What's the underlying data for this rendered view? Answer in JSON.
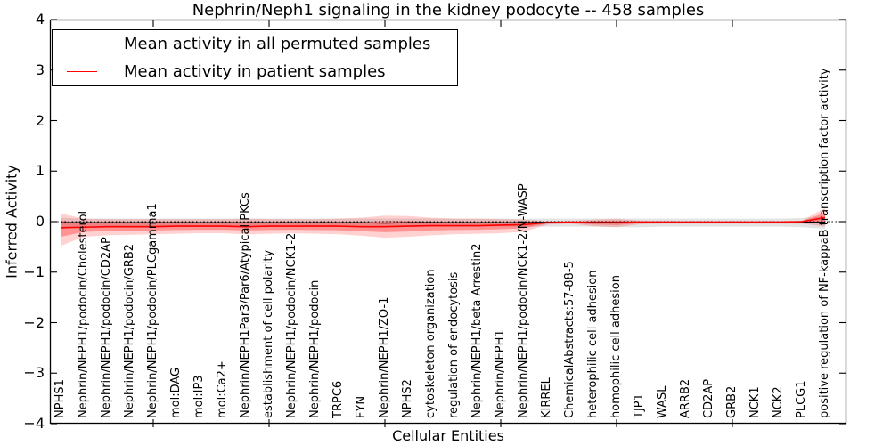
{
  "chart_data": {
    "type": "line",
    "title": "Nephrin/Neph1 signaling in the kidney podocyte -- 458 samples",
    "xlabel": "Cellular Entities",
    "ylabel": "Inferred Activity",
    "ylim": [
      -4,
      4
    ],
    "grid": false,
    "legend_position": "upper left",
    "legend": [
      "Mean activity in all permuted samples",
      "Mean activity in patient samples"
    ],
    "ytick_values": [
      4,
      3,
      2,
      1,
      0,
      -1,
      -2,
      -3,
      -4
    ],
    "ytick_labels": [
      "4",
      "3",
      "2",
      "1",
      "0",
      "−1",
      "−2",
      "−3",
      "−4"
    ],
    "xtick_indices": [
      4,
      9,
      14,
      19,
      24,
      29
    ],
    "zero_line": 0,
    "categories": [
      "NPHS1",
      "Nephrin/NEPH1/podocin/Cholesterol",
      "Nephrin/NEPH1/podocin/CD2AP",
      "Nephrin/NEPH1/podocin/GRB2",
      "Nephrin/NEPH1/podocin/PLCgamma1",
      "mol:DAG",
      "mol:IP3",
      "mol:Ca2+",
      "Nephrin/NEPH1Par3/Par6/Atypical PKCs",
      "establishment of cell polarity",
      "Nephrin/NEPH1/podocin/NCK1-2",
      "Nephrin/NEPH1/podocin",
      "TRPC6",
      "FYN",
      "Nephrin/NEPH1/ZO-1",
      "NPHS2",
      "cytoskeleton organization",
      "regulation of endocytosis",
      "Nephrin/NEPH1/beta Arrestin2",
      "Nephrin/NEPH1",
      "Nephrin/NEPH1/podocin/NCK1-2/N-WASP",
      "KIRREL",
      "ChemicalAbstracts:57-88-5",
      "heterophilic cell adhesion",
      "homophilic cell adhesion",
      "TJP1",
      "WASL",
      "ARRB2",
      "CD2AP",
      "GRB2",
      "NCK1",
      "NCK2",
      "PLCG1",
      "positive regulation of NF-kappaB transcription factor activity"
    ],
    "series": [
      {
        "name": "Mean activity in all permuted samples",
        "color": "#000000",
        "values": [
          -0.02,
          -0.02,
          -0.02,
          -0.02,
          -0.02,
          -0.02,
          -0.02,
          -0.02,
          -0.02,
          -0.02,
          -0.02,
          -0.02,
          -0.02,
          -0.02,
          -0.03,
          -0.02,
          -0.02,
          -0.02,
          -0.02,
          -0.02,
          -0.02,
          -0.01,
          -0.01,
          -0.01,
          -0.01,
          -0.01,
          -0.01,
          -0.01,
          -0.01,
          -0.01,
          -0.01,
          -0.01,
          -0.01,
          -0.01
        ]
      },
      {
        "name": "Mean activity in patient samples",
        "color": "#ff0000",
        "values": [
          -0.12,
          -0.11,
          -0.1,
          -0.1,
          -0.1,
          -0.09,
          -0.09,
          -0.09,
          -0.1,
          -0.09,
          -0.09,
          -0.09,
          -0.09,
          -0.1,
          -0.1,
          -0.09,
          -0.08,
          -0.08,
          -0.08,
          -0.07,
          -0.06,
          -0.02,
          -0.01,
          -0.02,
          -0.02,
          -0.01,
          -0.01,
          -0.01,
          -0.01,
          -0.01,
          -0.01,
          -0.01,
          0.0,
          0.08
        ]
      }
    ],
    "bands": [
      {
        "name": "permuted-samples-std-band",
        "color": "#999999",
        "opacity": 0.28,
        "hi": [
          0.08,
          0.06,
          0.06,
          0.06,
          0.06,
          0.06,
          0.06,
          0.06,
          0.06,
          0.06,
          0.06,
          0.06,
          0.06,
          0.06,
          0.06,
          0.06,
          0.06,
          0.06,
          0.06,
          0.06,
          0.06,
          0.06,
          0.06,
          0.06,
          0.06,
          0.06,
          0.06,
          0.06,
          0.06,
          0.06,
          0.06,
          0.06,
          0.07,
          0.1
        ],
        "lo": [
          -0.14,
          -0.11,
          -0.1,
          -0.1,
          -0.1,
          -0.1,
          -0.1,
          -0.1,
          -0.1,
          -0.1,
          -0.1,
          -0.1,
          -0.1,
          -0.1,
          -0.11,
          -0.1,
          -0.1,
          -0.1,
          -0.1,
          -0.1,
          -0.1,
          -0.1,
          -0.1,
          -0.1,
          -0.11,
          -0.11,
          -0.1,
          -0.1,
          -0.1,
          -0.1,
          -0.1,
          -0.1,
          -0.11,
          -0.14
        ]
      },
      {
        "name": "patient-samples-std-outer-band",
        "color": "#ff0000",
        "opacity": 0.18,
        "hi": [
          0.16,
          0.06,
          0.05,
          0.05,
          0.05,
          0.05,
          0.05,
          0.05,
          0.06,
          0.05,
          0.05,
          0.05,
          0.06,
          0.08,
          0.12,
          0.11,
          0.08,
          0.06,
          0.06,
          0.05,
          0.04,
          0.01,
          0.01,
          0.04,
          0.06,
          0.02,
          0.01,
          0.01,
          0.01,
          0.01,
          0.01,
          0.01,
          0.02,
          0.27
        ],
        "lo": [
          -0.48,
          -0.3,
          -0.27,
          -0.26,
          -0.25,
          -0.24,
          -0.23,
          -0.23,
          -0.25,
          -0.24,
          -0.23,
          -0.24,
          -0.25,
          -0.28,
          -0.32,
          -0.3,
          -0.27,
          -0.25,
          -0.24,
          -0.23,
          -0.2,
          -0.06,
          -0.04,
          -0.09,
          -0.11,
          -0.05,
          -0.04,
          -0.04,
          -0.04,
          -0.04,
          -0.04,
          -0.04,
          -0.04,
          -0.1
        ]
      },
      {
        "name": "patient-samples-std-inner-band",
        "color": "#ff0000",
        "opacity": 0.3,
        "derived_from_outer_factor": 0.5
      }
    ]
  }
}
